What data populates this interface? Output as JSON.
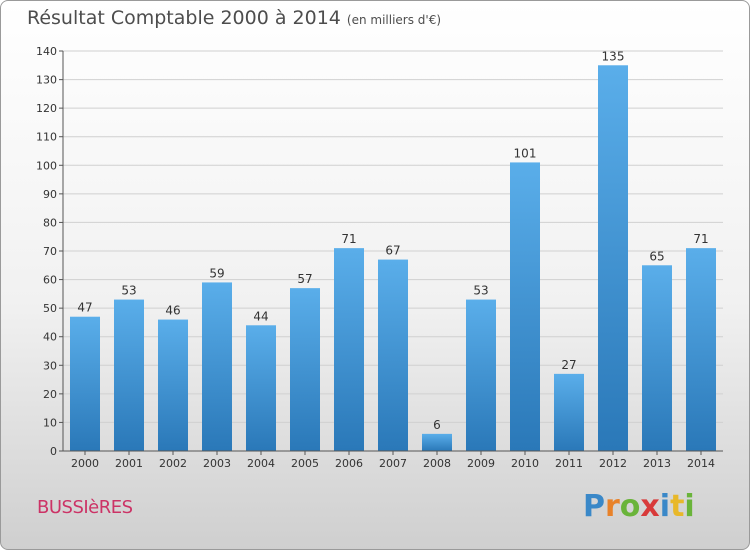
{
  "title": {
    "main": "Résultat Comptable 2000 à 2014",
    "unit": "(en milliers d'€)"
  },
  "commune": "BUSSIèRES",
  "logo": {
    "text": "Proxiti",
    "letters": [
      {
        "char": "P",
        "color": "#3a88c8"
      },
      {
        "char": "r",
        "color": "#e8822a"
      },
      {
        "char": "o",
        "color": "#6ab43a"
      },
      {
        "char": "x",
        "color": "#d83a3a"
      },
      {
        "char": "i",
        "color": "#3a88c8"
      },
      {
        "char": "t",
        "color": "#e8b82a"
      },
      {
        "char": "i",
        "color": "#6ab43a"
      }
    ]
  },
  "colors": {
    "bar_light": "#5aaeea",
    "bar_dark": "#2a78b8",
    "title": "#4d4d4d",
    "commune": "#cc3366",
    "grid": "#d0d0d0",
    "axis_text": "#333333"
  },
  "chart_data": {
    "type": "bar",
    "categories": [
      "2000",
      "2001",
      "2002",
      "2003",
      "2004",
      "2005",
      "2006",
      "2007",
      "2008",
      "2009",
      "2010",
      "2011",
      "2012",
      "2013",
      "2014"
    ],
    "values": [
      47,
      53,
      46,
      59,
      44,
      57,
      71,
      67,
      6,
      53,
      101,
      27,
      135,
      65,
      71
    ],
    "ylim": [
      0,
      140
    ],
    "yticks": [
      0,
      10,
      20,
      30,
      40,
      50,
      60,
      70,
      80,
      90,
      100,
      110,
      120,
      130,
      140
    ],
    "grid": true,
    "data_labels": true
  }
}
